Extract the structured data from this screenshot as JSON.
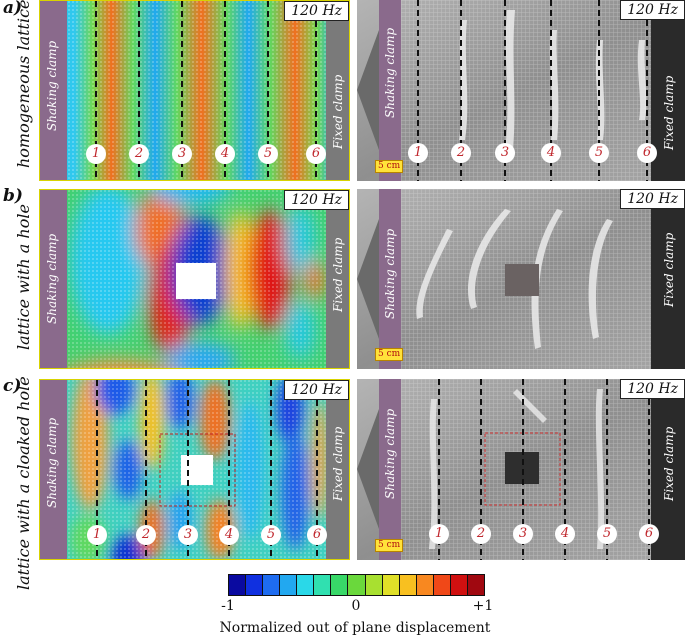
{
  "rows": [
    {
      "letter": "a)",
      "label": "homogeneous lattice"
    },
    {
      "letter": "b)",
      "label": "lattice with a hole"
    },
    {
      "letter": "c)",
      "label": "lattice with a cloaked hole"
    }
  ],
  "frequency": "120 Hz",
  "clamps": {
    "shaking": "Shaking clamp",
    "fixed": "Fixed clamp"
  },
  "scale_bar": "5 cm",
  "line_numbers": [
    "1",
    "2",
    "3",
    "4",
    "5",
    "6"
  ],
  "colorbar": {
    "min_label": "-1",
    "mid_label": "0",
    "max_label": "+1",
    "title": "Normalized out of plane displacement",
    "colors": [
      "#0a0aa0",
      "#1030e0",
      "#1e6cf0",
      "#22a8f0",
      "#2ad8e8",
      "#30e0b0",
      "#38d868",
      "#6ad83c",
      "#a8e030",
      "#e0e028",
      "#f8c020",
      "#f88820",
      "#f04818",
      "#d01010",
      "#a00810"
    ]
  },
  "colors": {
    "panel_border": "#d8d300",
    "clamp_purple": "#8a6a8c",
    "fixed_gray": "#7a7a7a",
    "marker_red": "#c0282e"
  }
}
